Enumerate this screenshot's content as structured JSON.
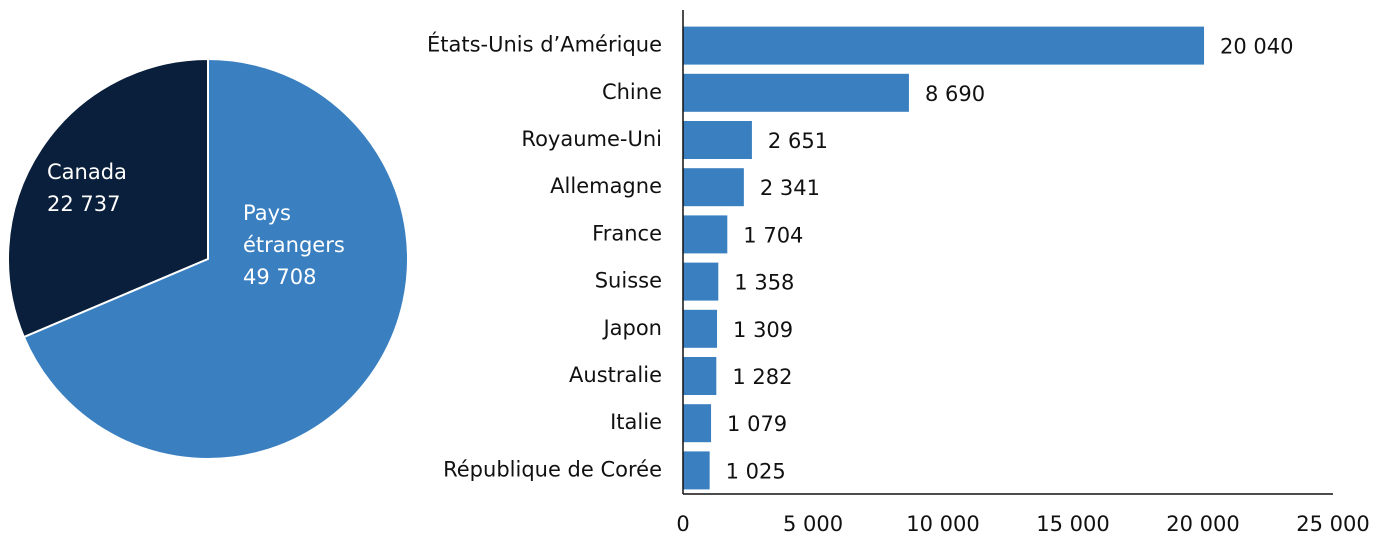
{
  "chart_data": [
    {
      "type": "pie",
      "categories": [
        "Canada",
        "Pays étrangers"
      ],
      "values": [
        22737,
        49708
      ],
      "value_labels": [
        "22 737",
        "49 708"
      ],
      "colors": [
        "#0a1f3b",
        "#3a80c1"
      ]
    },
    {
      "type": "hbar",
      "categories": [
        "États-Unis d’Amérique",
        "Chine",
        "Royaume-Uni",
        "Allemagne",
        "France",
        "Suisse",
        "Japon",
        "Australie",
        "Italie",
        "République de Corée"
      ],
      "values": [
        20040,
        8690,
        2651,
        2341,
        1704,
        1358,
        1309,
        1282,
        1079,
        1025
      ],
      "value_labels": [
        "20 040",
        "8 690",
        "2 651",
        "2 341",
        "1 704",
        "1 358",
        "1 309",
        "1 282",
        "1 079",
        "1 025"
      ],
      "color": "#3a80c1",
      "xlim": [
        0,
        25000
      ],
      "xticks": [
        0,
        {
          "value": 5000,
          "label": "5 000"
        },
        {
          "value": 10000,
          "label": "10 000"
        },
        {
          "value": 15000,
          "label": "15 000"
        },
        {
          "value": 20000,
          "label": "20 000"
        },
        {
          "value": 25000,
          "label": "25 000"
        }
      ]
    }
  ]
}
